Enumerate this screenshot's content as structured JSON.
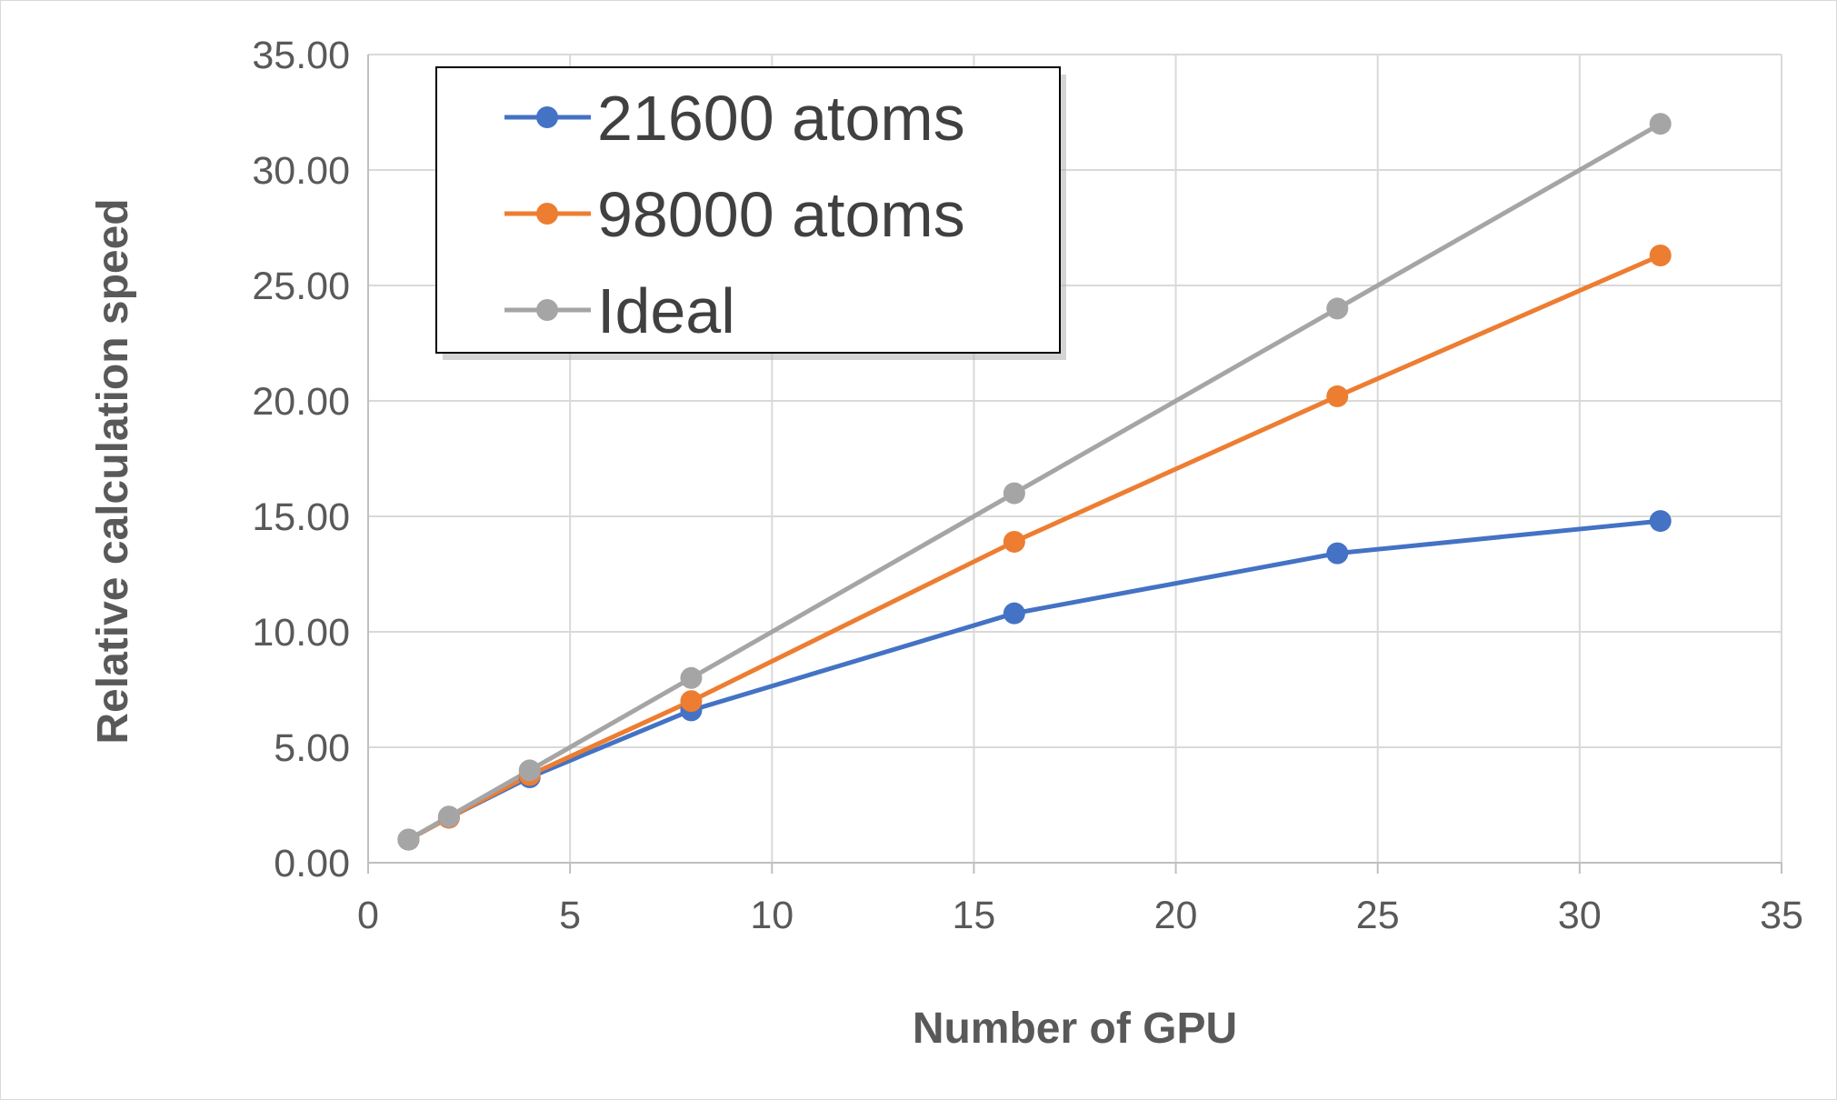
{
  "chart_data": {
    "type": "line",
    "title": "",
    "xlabel": "Number of GPU",
    "ylabel": "Relative calculation speed",
    "xlim": [
      0,
      35
    ],
    "ylim": [
      0,
      35
    ],
    "x_ticks": [
      "0",
      "5",
      "10",
      "15",
      "20",
      "25",
      "30",
      "35"
    ],
    "y_ticks": [
      "0.00",
      "5.00",
      "10.00",
      "15.00",
      "20.00",
      "25.00",
      "30.00",
      "35.00"
    ],
    "grid": true,
    "legend_position": "top-left",
    "series": [
      {
        "name": "21600 atoms",
        "color": "#4472c4",
        "x": [
          1,
          2,
          4,
          8,
          16,
          24,
          32
        ],
        "y": [
          1.0,
          1.95,
          3.7,
          6.6,
          10.8,
          13.4,
          14.8
        ]
      },
      {
        "name": "98000 atoms",
        "color": "#ed7d31",
        "x": [
          1,
          2,
          4,
          8,
          16,
          24,
          32
        ],
        "y": [
          1.0,
          1.95,
          3.8,
          7.0,
          13.9,
          20.2,
          26.3
        ]
      },
      {
        "name": "Ideal",
        "color": "#a5a5a5",
        "x": [
          1,
          2,
          4,
          8,
          16,
          24,
          32
        ],
        "y": [
          1,
          2,
          4,
          8,
          16,
          24,
          32
        ]
      }
    ]
  }
}
